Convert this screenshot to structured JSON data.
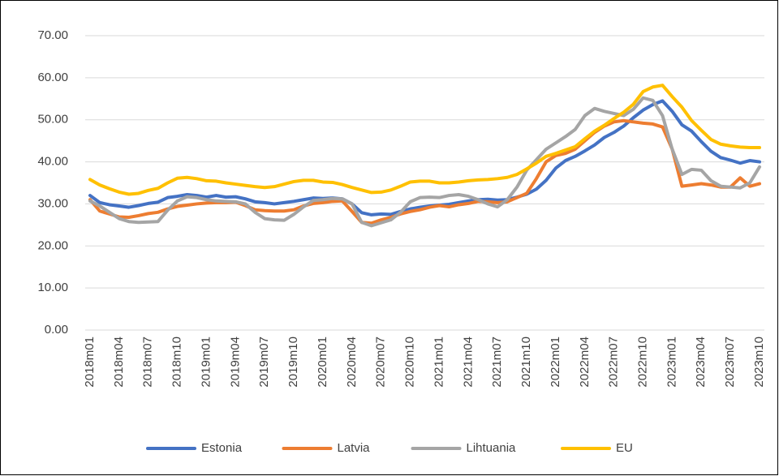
{
  "chart_data": {
    "type": "line",
    "categories": [
      "2018m01",
      null,
      null,
      "2018m04",
      null,
      null,
      "2018m07",
      null,
      null,
      "2018m10",
      null,
      null,
      "2019m01",
      null,
      null,
      "2019m04",
      null,
      null,
      "2019m07",
      null,
      null,
      "2019m10",
      null,
      null,
      "2020m01",
      null,
      null,
      "2020m04",
      null,
      null,
      "2020m07",
      null,
      null,
      "2020m10",
      null,
      null,
      "2021m01",
      null,
      null,
      "2021m04",
      null,
      null,
      "2021m07",
      null,
      null,
      "2021m10",
      null,
      null,
      "2022m01",
      null,
      null,
      "2022m04",
      null,
      null,
      "2022m07",
      null,
      null,
      "2022m10",
      null,
      null,
      "2023m01",
      null,
      null,
      "2023m04",
      null,
      null,
      "2023m07",
      null,
      null,
      "2023m10"
    ],
    "series": [
      {
        "name": "Estonia",
        "color": "#4472c4",
        "values": [
          32.0,
          30.3,
          29.8,
          29.5,
          29.2,
          29.6,
          30.1,
          30.4,
          31.5,
          31.8,
          32.2,
          32.0,
          31.6,
          32.0,
          31.6,
          31.7,
          31.2,
          30.5,
          30.3,
          30.0,
          30.3,
          30.6,
          31.0,
          31.4,
          31.3,
          31.4,
          31.2,
          30.0,
          27.9,
          27.4,
          27.6,
          27.5,
          28.2,
          28.8,
          29.2,
          29.5,
          29.7,
          29.9,
          30.3,
          30.7,
          31.0,
          31.1,
          30.9,
          31.0,
          31.6,
          32.3,
          33.5,
          35.6,
          38.5,
          40.3,
          41.3,
          42.6,
          44.0,
          45.8,
          47.0,
          48.5,
          50.5,
          52.3,
          53.6,
          54.5,
          52.0,
          48.8,
          47.3,
          44.8,
          42.5,
          41.0,
          40.4,
          39.7,
          40.3,
          40.0
        ]
      },
      {
        "name": "Latvia",
        "color": "#ed7d31",
        "values": [
          31.0,
          28.3,
          27.6,
          26.9,
          26.8,
          27.2,
          27.7,
          28.0,
          28.8,
          29.4,
          29.7,
          30.0,
          30.2,
          30.3,
          30.3,
          30.4,
          29.6,
          28.6,
          28.4,
          28.3,
          28.3,
          28.6,
          29.5,
          30.1,
          30.3,
          30.6,
          30.7,
          28.2,
          25.6,
          25.4,
          26.2,
          26.8,
          27.6,
          28.2,
          28.6,
          29.2,
          29.6,
          29.3,
          29.8,
          30.1,
          30.6,
          30.5,
          30.3,
          30.5,
          31.5,
          32.5,
          36.0,
          40.0,
          41.5,
          42.0,
          43.0,
          45.0,
          47.0,
          48.5,
          49.5,
          49.8,
          49.5,
          49.2,
          49.0,
          48.3,
          43.0,
          34.2,
          34.5,
          34.8,
          34.5,
          34.0,
          34.0,
          36.2,
          34.2,
          34.8
        ]
      },
      {
        "name": "Lihtuania",
        "color": "#a5a5a5",
        "values": [
          30.7,
          29.5,
          28.0,
          26.5,
          25.8,
          25.6,
          25.7,
          25.8,
          28.5,
          30.7,
          31.7,
          31.5,
          31.0,
          30.7,
          30.6,
          30.5,
          30.0,
          28.0,
          26.5,
          26.2,
          26.1,
          27.5,
          29.3,
          30.8,
          31.0,
          31.3,
          31.2,
          30.0,
          25.6,
          24.8,
          25.5,
          26.2,
          28.0,
          30.5,
          31.5,
          31.6,
          31.5,
          32.0,
          32.2,
          31.8,
          31.0,
          30.0,
          29.3,
          31.0,
          34.0,
          38.0,
          40.5,
          43.0,
          44.5,
          46.0,
          47.7,
          51.0,
          52.7,
          52.0,
          51.5,
          51.0,
          52.5,
          55.2,
          54.6,
          51.0,
          43.0,
          37.0,
          38.2,
          38.0,
          35.5,
          34.2,
          34.0,
          33.8,
          35.0,
          38.8
        ]
      },
      {
        "name": "EU",
        "color": "#ffc000",
        "values": [
          35.8,
          34.5,
          33.6,
          32.8,
          32.3,
          32.5,
          33.2,
          33.7,
          35.0,
          36.1,
          36.3,
          36.0,
          35.5,
          35.4,
          35.0,
          34.7,
          34.4,
          34.1,
          33.9,
          34.1,
          34.7,
          35.3,
          35.6,
          35.6,
          35.2,
          35.1,
          34.6,
          33.9,
          33.3,
          32.7,
          32.8,
          33.3,
          34.2,
          35.2,
          35.4,
          35.4,
          35.0,
          35.0,
          35.2,
          35.5,
          35.7,
          35.8,
          36.0,
          36.3,
          37.0,
          38.3,
          39.7,
          41.3,
          42.0,
          42.8,
          43.6,
          45.5,
          47.3,
          48.7,
          50.3,
          51.8,
          53.7,
          56.7,
          57.8,
          58.2,
          55.5,
          53.0,
          49.8,
          47.5,
          45.3,
          44.2,
          43.8,
          43.5,
          43.4,
          43.4
        ]
      }
    ],
    "ylim": [
      0,
      70
    ],
    "yticks": [
      {
        "value": 0,
        "label": "0.00"
      },
      {
        "value": 10,
        "label": "10.00"
      },
      {
        "value": 20,
        "label": "20.00"
      },
      {
        "value": 30,
        "label": "30.00"
      },
      {
        "value": 40,
        "label": "40.00"
      },
      {
        "value": 50,
        "label": "50.00"
      },
      {
        "value": 60,
        "label": "60.00"
      },
      {
        "value": 70,
        "label": "70.00"
      }
    ],
    "grid": true,
    "legend": "bottom"
  }
}
